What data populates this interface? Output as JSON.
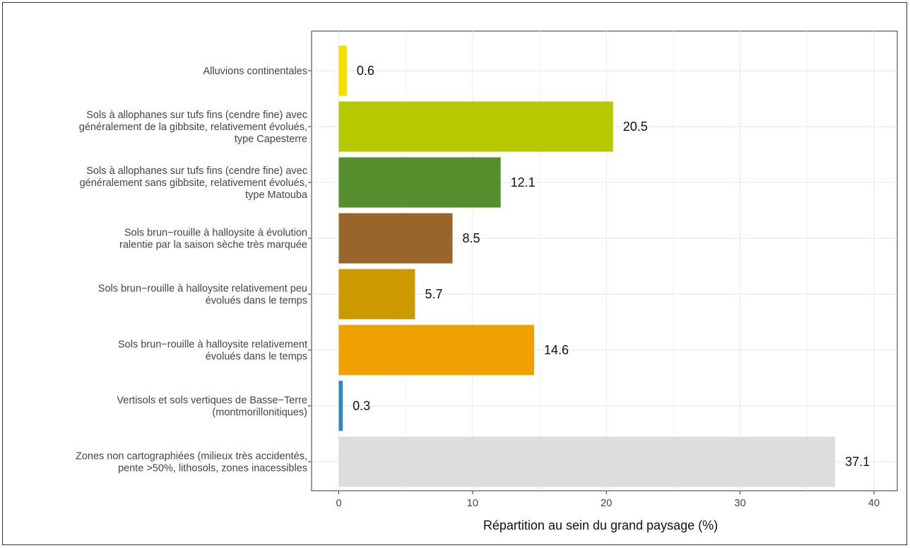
{
  "chart_data": {
    "type": "bar",
    "orientation": "horizontal",
    "xlabel": "Répartition au sein du grand paysage (%)",
    "ylabel": "",
    "xlim": [
      0,
      40
    ],
    "xticks": [
      0,
      10,
      20,
      30,
      40
    ],
    "grid": true,
    "categories": [
      [
        "Alluvions continentales"
      ],
      [
        "Sols à allophanes sur tufs fins (cendre fine) avec",
        "généralement de la gibbsite, relativement évolués,",
        "type Capesterre"
      ],
      [
        "Sols à allophanes sur tufs fins (cendre fine) avec",
        "généralement sans gibbsite, relativement évolués,",
        "type Matouba"
      ],
      [
        "Sols brun−rouille à halloysite à évolution",
        "ralentie par la saison sèche très marquée"
      ],
      [
        "Sols brun−rouille à halloysite relativement peu",
        "évolués dans le temps"
      ],
      [
        "Sols brun−rouille à halloysite relativement",
        "évolués dans le temps"
      ],
      [
        "Vertisols et sols vertiques de Basse−Terre",
        "(montmorillonitiques)"
      ],
      [
        "Zones non cartographiées (milieux très accidentés,",
        "pente >50%, lithosols, zones inacessibles"
      ]
    ],
    "values": [
      0.6,
      20.5,
      12.1,
      8.5,
      5.7,
      14.6,
      0.3,
      37.1
    ],
    "value_labels": [
      "0.6",
      "20.5",
      "12.1",
      "8.5",
      "5.7",
      "14.6",
      "0.3",
      "37.1"
    ],
    "colors": [
      "#F5DF00",
      "#B5C800",
      "#558E2D",
      "#9A652A",
      "#CC9900",
      "#F0A000",
      "#2F86C8",
      "#DEDDDC"
    ]
  }
}
